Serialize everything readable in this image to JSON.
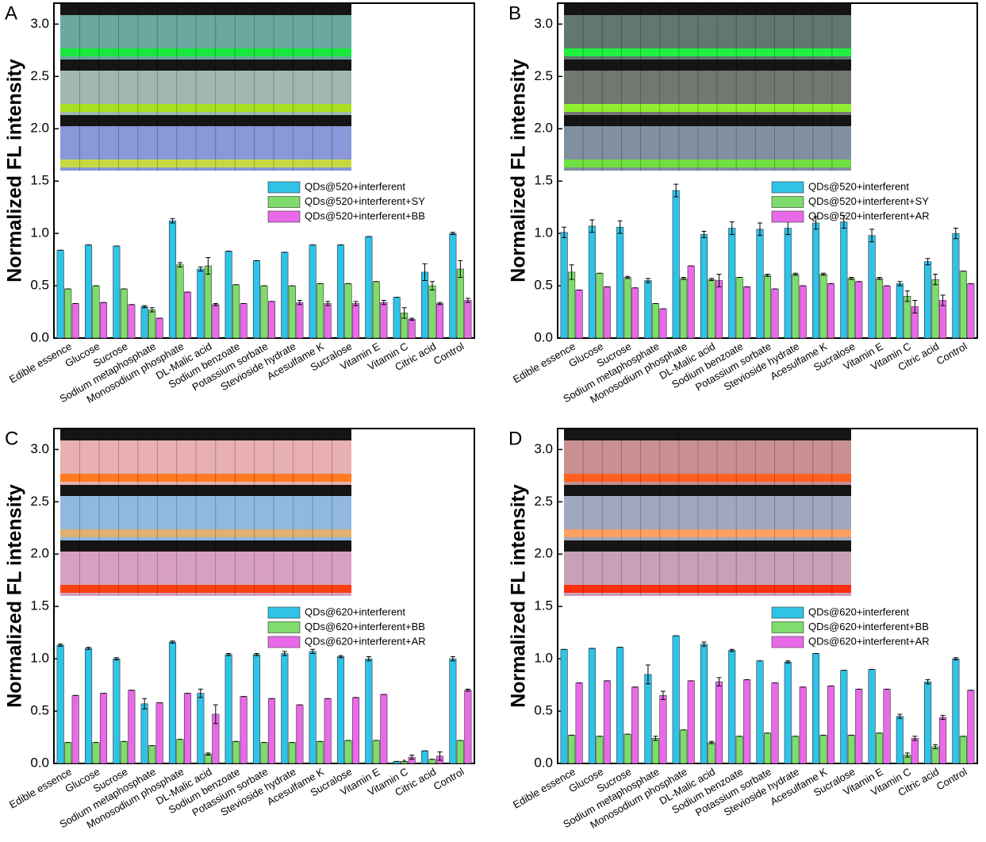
{
  "chart_data": [
    {
      "type": "bar",
      "label": "A",
      "ylabel": "Normalized FL intensity",
      "categories": [
        "Edible essence",
        "Glucose",
        "Sucrose",
        "Sodium metaphosphate",
        "Monosodium phosphate",
        "DL-Malic acid",
        "Sodium benzoate",
        "Potassium sorbate",
        "Stevioside hydrate",
        "Acesulfame K",
        "Sucralose",
        "Vitamin E",
        "Vitamin C",
        "Citric acid",
        "Control"
      ],
      "series": [
        {
          "name": "QDs@520+interferent",
          "color": "#2fc3e8",
          "values": [
            0.84,
            0.89,
            0.88,
            0.3,
            1.12,
            0.66,
            0.83,
            0.74,
            0.82,
            0.89,
            0.89,
            0.97,
            0.39,
            0.63,
            1.0
          ],
          "errors": [
            0,
            0,
            0,
            0.01,
            0.02,
            0.02,
            0,
            0,
            0,
            0,
            0,
            0,
            0,
            0.08,
            0.01
          ]
        },
        {
          "name": "QDs@520+interferent+SY",
          "color": "#7fdc6c",
          "values": [
            0.47,
            0.5,
            0.47,
            0.27,
            0.7,
            0.69,
            0.51,
            0.5,
            0.5,
            0.52,
            0.52,
            0.54,
            0.24,
            0.5,
            0.66
          ],
          "errors": [
            0,
            0,
            0,
            0.02,
            0.02,
            0.08,
            0,
            0,
            0,
            0,
            0,
            0,
            0.05,
            0.04,
            0.08
          ]
        },
        {
          "name": "QDs@520+interferent+BB",
          "color": "#e96ae9",
          "values": [
            0.33,
            0.34,
            0.32,
            0.19,
            0.44,
            0.32,
            0.33,
            0.35,
            0.34,
            0.33,
            0.33,
            0.34,
            0.18,
            0.33,
            0.36
          ],
          "errors": [
            0,
            0,
            0,
            0,
            0,
            0.01,
            0,
            0,
            0.02,
            0.02,
            0.02,
            0.02,
            0.01,
            0.01,
            0.02
          ]
        }
      ],
      "ylim": [
        0,
        3.2
      ],
      "yticks": [
        {
          "value": 0,
          "label": "0.0"
        },
        0.5,
        {
          "value": 1,
          "label": "1.0"
        },
        1.5,
        {
          "value": 2,
          "label": "2.0"
        },
        2.5,
        {
          "value": 3,
          "label": "3.0"
        }
      ]
    },
    {
      "type": "bar",
      "label": "B",
      "ylabel": "Normalized FL intensity",
      "categories": [
        "Edible essence",
        "Glucose",
        "Sucrose",
        "Sodium metaphosphate",
        "Monosodium phosphate",
        "DL-Malic acid",
        "Sodium benzoate",
        "Potassium sorbate",
        "Stevioside hydrate",
        "Acesulfame K",
        "Sucralose",
        "Vitamin E",
        "Vitamin C",
        "Citric acid",
        "Control"
      ],
      "series": [
        {
          "name": "QDs@520+interferent",
          "color": "#2fc3e8",
          "values": [
            1.01,
            1.07,
            1.06,
            0.55,
            1.41,
            0.99,
            1.05,
            1.04,
            1.05,
            1.1,
            1.11,
            0.98,
            0.52,
            0.73,
            1.0
          ],
          "errors": [
            0.05,
            0.06,
            0.06,
            0.02,
            0.06,
            0.03,
            0.06,
            0.06,
            0.06,
            0.06,
            0.06,
            0.06,
            0.02,
            0.03,
            0.05
          ]
        },
        {
          "name": "QDs@520+interferent+SY",
          "color": "#7fdc6c",
          "values": [
            0.63,
            0.62,
            0.58,
            0.33,
            0.57,
            0.56,
            0.58,
            0.6,
            0.61,
            0.61,
            0.57,
            0.57,
            0.4,
            0.56,
            0.64
          ],
          "errors": [
            0.07,
            0,
            0.01,
            0,
            0.01,
            0.01,
            0,
            0.01,
            0.01,
            0.01,
            0.01,
            0.01,
            0.05,
            0.05,
            0
          ]
        },
        {
          "name": "QDs@520+interferent+AR",
          "color": "#e96ae9",
          "values": [
            0.46,
            0.49,
            0.48,
            0.28,
            0.69,
            0.55,
            0.49,
            0.47,
            0.5,
            0.52,
            0.54,
            0.5,
            0.3,
            0.36,
            0.52
          ],
          "errors": [
            0,
            0,
            0,
            0,
            0,
            0.06,
            0,
            0,
            0,
            0,
            0,
            0,
            0.06,
            0.05,
            0
          ]
        }
      ],
      "ylim": [
        0,
        3.2
      ],
      "yticks": [
        {
          "value": 0,
          "label": "0.0"
        },
        0.5,
        {
          "value": 1,
          "label": "1.0"
        },
        1.5,
        {
          "value": 2,
          "label": "2.0"
        },
        2.5,
        {
          "value": 3,
          "label": "3.0"
        }
      ]
    },
    {
      "type": "bar",
      "label": "C",
      "ylabel": "Normalized FL intensity",
      "categories": [
        "Edible essence",
        "Glucose",
        "Sucrose",
        "Sodium metaphosphate",
        "Monosodium phosphate",
        "DL-Malic acid",
        "Sodium benzoate",
        "Potassium sorbate",
        "Stevioside hydrate",
        "Acesulfame K",
        "Sucralose",
        "Vitamin E",
        "Vitamin C",
        "Citric acid",
        "Control"
      ],
      "series": [
        {
          "name": "QDs@620+interferent",
          "color": "#2fc3e8",
          "values": [
            1.13,
            1.1,
            1.0,
            0.57,
            1.16,
            0.67,
            1.04,
            1.04,
            1.05,
            1.07,
            1.02,
            1.0,
            0.02,
            0.12,
            1.0
          ],
          "errors": [
            0.01,
            0.01,
            0.01,
            0.05,
            0.01,
            0.04,
            0.01,
            0.01,
            0.02,
            0.02,
            0.01,
            0.02,
            0,
            0,
            0.02
          ]
        },
        {
          "name": "QDs@620+interferent+BB",
          "color": "#7fdc6c",
          "values": [
            0.2,
            0.2,
            0.21,
            0.17,
            0.23,
            0.09,
            0.21,
            0.2,
            0.2,
            0.21,
            0.22,
            0.22,
            0.02,
            0.04,
            0.22
          ],
          "errors": [
            0,
            0,
            0,
            0,
            0,
            0.01,
            0,
            0,
            0,
            0,
            0,
            0,
            0,
            0,
            0
          ]
        },
        {
          "name": "QDs@620+interferent+AR",
          "color": "#e96ae9",
          "values": [
            0.65,
            0.67,
            0.7,
            0.58,
            0.67,
            0.47,
            0.64,
            0.62,
            0.56,
            0.62,
            0.63,
            0.66,
            0.06,
            0.07,
            0.7
          ],
          "errors": [
            0,
            0,
            0,
            0,
            0,
            0.09,
            0,
            0,
            0,
            0,
            0,
            0,
            0.02,
            0.04,
            0.01
          ]
        }
      ],
      "ylim": [
        0,
        3.2
      ],
      "yticks": [
        {
          "value": 0,
          "label": "0.0"
        },
        0.5,
        {
          "value": 1,
          "label": "1.0"
        },
        1.5,
        {
          "value": 2,
          "label": "2.0"
        },
        2.5,
        {
          "value": 3,
          "label": "3.0"
        }
      ]
    },
    {
      "type": "bar",
      "label": "D",
      "ylabel": "Normalized FL intensity",
      "categories": [
        "Edible essence",
        "Glucose",
        "Sucrose",
        "Sodium metaphosphate",
        "Monosodium phosphate",
        "DL-Malic acid",
        "Sodium benzoate",
        "Potassium sorbate",
        "Stevioside hydrate",
        "Acesulfame K",
        "Sucralose",
        "Vitamin E",
        "Vitamin C",
        "Citric acid",
        "Control"
      ],
      "series": [
        {
          "name": "QDs@620+interferent",
          "color": "#2fc3e8",
          "values": [
            1.09,
            1.1,
            1.11,
            0.85,
            1.22,
            1.14,
            1.08,
            0.98,
            0.97,
            1.05,
            0.89,
            0.9,
            0.45,
            0.78,
            1.0
          ],
          "errors": [
            0,
            0,
            0,
            0.09,
            0,
            0.02,
            0.01,
            0,
            0.01,
            0,
            0,
            0,
            0.02,
            0.02,
            0.01
          ]
        },
        {
          "name": "QDs@620+interferent+BB",
          "color": "#7fdc6c",
          "values": [
            0.27,
            0.26,
            0.28,
            0.24,
            0.32,
            0.2,
            0.26,
            0.29,
            0.26,
            0.27,
            0.27,
            0.29,
            0.08,
            0.16,
            0.26
          ],
          "errors": [
            0,
            0,
            0,
            0.02,
            0,
            0.01,
            0,
            0,
            0,
            0,
            0,
            0,
            0.02,
            0.02,
            0
          ]
        },
        {
          "name": "QDs@620+interferent+AR",
          "color": "#e96ae9",
          "values": [
            0.77,
            0.79,
            0.73,
            0.65,
            0.79,
            0.78,
            0.8,
            0.77,
            0.73,
            0.74,
            0.71,
            0.71,
            0.24,
            0.44,
            0.7
          ],
          "errors": [
            0,
            0,
            0,
            0.04,
            0,
            0.04,
            0,
            0,
            0,
            0,
            0,
            0,
            0.02,
            0.02,
            0
          ]
        }
      ],
      "ylim": [
        0,
        3.2
      ],
      "yticks": [
        {
          "value": 0,
          "label": "0.0"
        },
        0.5,
        {
          "value": 1,
          "label": "1.0"
        },
        1.5,
        {
          "value": 2,
          "label": "2.0"
        },
        2.5,
        {
          "value": 3,
          "label": "3.0"
        }
      ]
    }
  ]
}
